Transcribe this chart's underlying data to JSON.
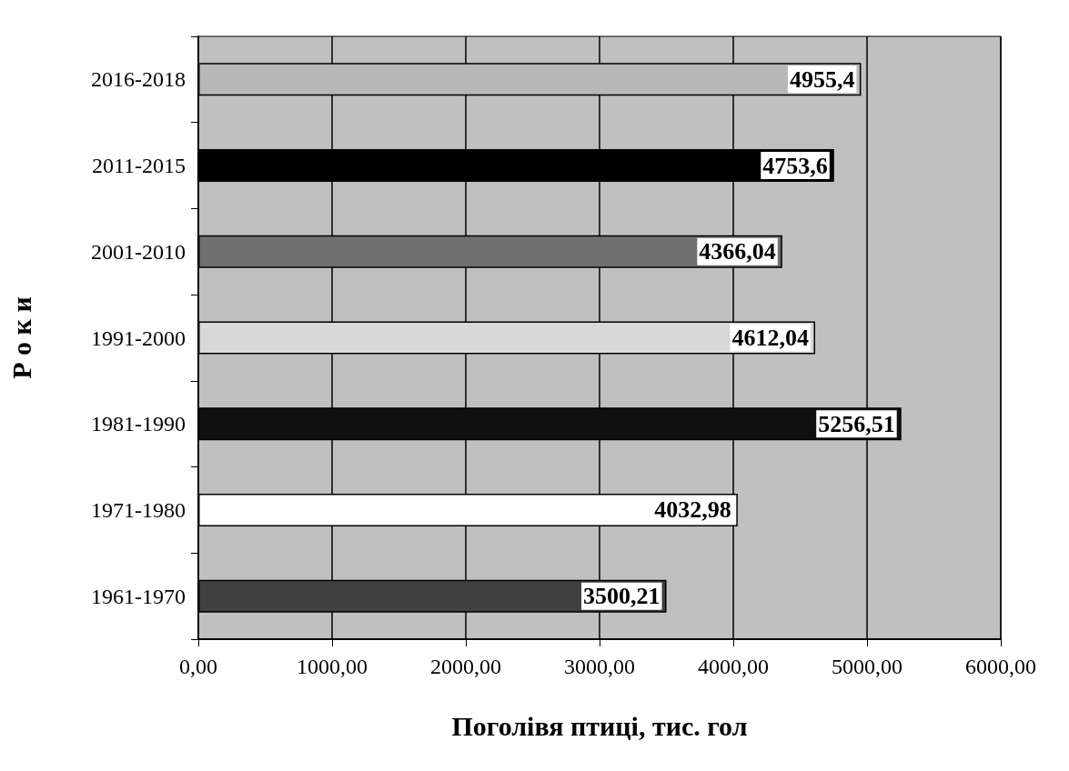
{
  "chart_data": {
    "type": "bar",
    "orientation": "horizontal",
    "categories": [
      "2016-2018",
      "2011-2015",
      "2001-2010",
      "1991-2000",
      "1981-1990",
      "1971-1980",
      "1961-1970"
    ],
    "values": [
      4955.4,
      4753.6,
      4366.04,
      4612.04,
      5256.51,
      4032.98,
      3500.21
    ],
    "value_labels": [
      "4955,4",
      "4753,6",
      "4366,04",
      "4612,04",
      "5256,51",
      "4032,98",
      "3500,21"
    ],
    "colors": [
      "#b8b8b8",
      "#000000",
      "#707070",
      "#d8d8d8",
      "#101010",
      "#ffffff",
      "#404040"
    ],
    "xlim": [
      0,
      6000
    ],
    "xticks": [
      {
        "value": 0,
        "label": "0,00"
      },
      {
        "value": 1000,
        "label": "1000,00"
      },
      {
        "value": 2000,
        "label": "2000,00"
      },
      {
        "value": 3000,
        "label": "3000,00"
      },
      {
        "value": 4000,
        "label": "4000,00"
      },
      {
        "value": 5000,
        "label": "5000,00"
      },
      {
        "value": 6000,
        "label": "6000,00"
      }
    ],
    "xlabel": "Поголівя птиці, тис. гол",
    "ylabel": "Р о к и",
    "grid": "x"
  }
}
